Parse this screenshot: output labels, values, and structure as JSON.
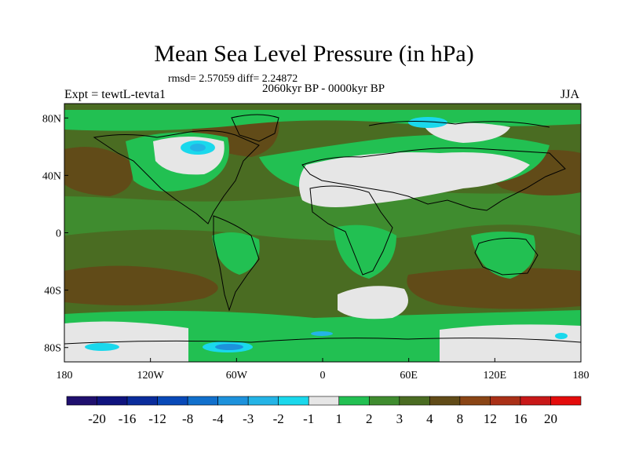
{
  "title": "Mean Sea Level Pressure (in hPa)",
  "stats": "rmsd= 2.57059 diff= 2.24872",
  "period": "2060kyr BP - 0000kyr BP",
  "experiment": "Expt = tewtL-tevta1",
  "season": "JJA",
  "lat_ticks": [
    {
      "value": 80,
      "label": "80N"
    },
    {
      "value": 40,
      "label": "40N"
    },
    {
      "value": 0,
      "label": "0"
    },
    {
      "value": -40,
      "label": "40S"
    },
    {
      "value": -80,
      "label": "80S"
    }
  ],
  "lon_ticks": [
    {
      "value": -180,
      "label": "180"
    },
    {
      "value": -120,
      "label": "120W"
    },
    {
      "value": -60,
      "label": "60W"
    },
    {
      "value": 0,
      "label": "0"
    },
    {
      "value": 60,
      "label": "60E"
    },
    {
      "value": 120,
      "label": "120E"
    },
    {
      "value": 180,
      "label": "180"
    }
  ],
  "colorbar": {
    "colors": [
      "#1f0f6e",
      "#0f137e",
      "#0a2c9c",
      "#0849b8",
      "#1170cc",
      "#1d92dc",
      "#24b4e6",
      "#1ad8ec",
      "#e6e6e6",
      "#22c052",
      "#3f8c2f",
      "#4a6c22",
      "#614b18",
      "#8a4515",
      "#aa3017",
      "#c81818",
      "#e40c0c"
    ],
    "labels": [
      "-20",
      "-16",
      "-12",
      "-8",
      "-4",
      "-3",
      "-2",
      "-1",
      "1",
      "2",
      "3",
      "4",
      "8",
      "12",
      "16",
      "20"
    ]
  },
  "colors": {
    "band_2_3": "#3f8c2f",
    "band_3_4": "#4a6c22",
    "band_4_8": "#614b18",
    "band_1_2": "#22c052",
    "band_-1_1": "#e6e6e6",
    "band_-2_-1": "#1ad8ec",
    "band_-3_-2": "#24b4e6",
    "band_-4_-3": "#1d92dc"
  }
}
